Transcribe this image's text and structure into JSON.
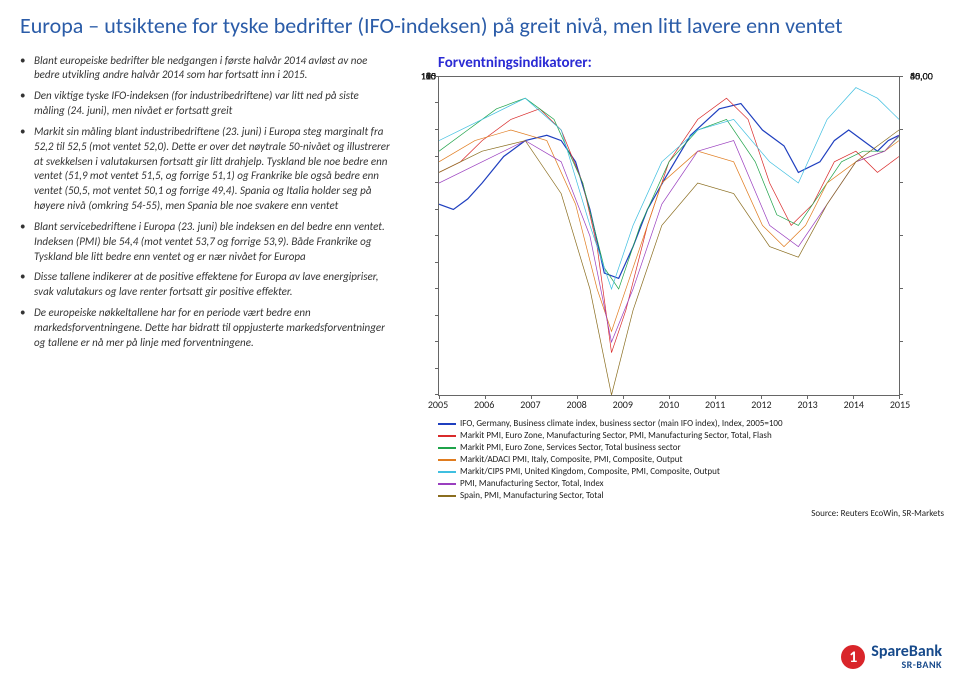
{
  "title": "Europa – utsiktene for tyske bedrifter (IFO-indeksen) på greit nivå, men litt lavere enn ventet",
  "bullets": [
    "Blant europeiske bedrifter ble nedgangen i første halvår 2014 avløst av noe bedre utvikling andre halvår 2014 som har fortsatt inn i 2015.",
    "Den viktige tyske IFO-indeksen (for industribedriftene) var litt ned på siste måling (24. juni), men nivået er fortsatt greit",
    "Markit sin måling blant industribedriftene (23. juni) i Europa steg marginalt fra 52,2 til 52,5 (mot ventet 52,0). Dette er over det nøytrale 50-nivået og illustrerer at svekkelsen i valutakursen fortsatt gir litt drahjelp. Tyskland ble noe bedre enn ventet (51,9 mot ventet 51,5, og forrige 51,1) og Frankrike ble også bedre enn ventet (50,5, mot ventet 50,1 og forrige 49,4). Spania og Italia holder seg på høyere nivå (omkring 54-55), men Spania ble noe svakere enn ventet",
    "Blant servicebedriftene i Europa (23. juni) ble indeksen en del bedre enn ventet. Indeksen (PMI) ble 54,4 (mot ventet 53,7 og forrige 53,9). Både Frankrike og Tyskland ble litt bedre enn ventet og er nær nivået for Europa",
    "Disse tallene indikerer at de positive effektene for Europa av lave energipriser, svak valutakurs og lave renter fortsatt gir positive effekter.",
    "De europeiske nøkkeltallene har for en periode vært bedre enn markedsforventningene. Dette har bidratt til oppjusterte markedsforventninger og tallene er nå mer på linje med forventningene."
  ],
  "chart": {
    "title": "Forventningsindikatorer:",
    "x_years": [
      "2005",
      "2006",
      "2007",
      "2008",
      "2009",
      "2010",
      "2011",
      "2012",
      "2013",
      "2014",
      "2015"
    ],
    "left_axis": {
      "min": 60,
      "max": 120,
      "step": 5
    },
    "right_axis": {
      "min": 30,
      "max": 60,
      "step": 5,
      "decimals": 2
    },
    "background_color": "#ffffff",
    "border_color": "#666666",
    "series": [
      {
        "id": "ifo",
        "label": "IFO, Germany, Business climate index, business sector (main IFO index), Index, 2005=100",
        "color": "#1f3fbf",
        "axis": "left",
        "pts": [
          [
            0,
            96
          ],
          [
            4,
            95
          ],
          [
            8,
            97
          ],
          [
            12,
            100
          ],
          [
            18,
            105
          ],
          [
            24,
            108
          ],
          [
            30,
            109
          ],
          [
            34,
            108
          ],
          [
            38,
            104
          ],
          [
            42,
            95
          ],
          [
            46,
            83
          ],
          [
            50,
            82
          ],
          [
            54,
            88
          ],
          [
            58,
            95
          ],
          [
            63,
            101
          ],
          [
            70,
            109
          ],
          [
            78,
            114
          ],
          [
            84,
            115
          ],
          [
            90,
            110
          ],
          [
            96,
            107
          ],
          [
            100,
            102
          ],
          [
            106,
            104
          ],
          [
            110,
            108
          ],
          [
            114,
            110
          ],
          [
            118,
            108
          ],
          [
            122,
            106
          ],
          [
            125,
            108
          ],
          [
            128,
            109
          ]
        ]
      },
      {
        "id": "ez_mfg",
        "label": "Markit PMI, Euro Zone, Manufacturing Sector, PMI, Manufacturing Sector, Total, Flash",
        "color": "#d92b2b",
        "axis": "right",
        "pts": [
          [
            0,
            51
          ],
          [
            6,
            52
          ],
          [
            12,
            54
          ],
          [
            20,
            56
          ],
          [
            28,
            57
          ],
          [
            34,
            55
          ],
          [
            40,
            50
          ],
          [
            44,
            44
          ],
          [
            48,
            34
          ],
          [
            52,
            38
          ],
          [
            58,
            46
          ],
          [
            64,
            52
          ],
          [
            72,
            56
          ],
          [
            80,
            58
          ],
          [
            86,
            56
          ],
          [
            92,
            50
          ],
          [
            98,
            46
          ],
          [
            104,
            48
          ],
          [
            110,
            52
          ],
          [
            116,
            53
          ],
          [
            122,
            51
          ],
          [
            126,
            52
          ],
          [
            128,
            52.5
          ]
        ]
      },
      {
        "id": "ez_svc",
        "label": "Markit PMI, Euro Zone, Services Sector, Total business sector",
        "color": "#1fa34a",
        "axis": "right",
        "pts": [
          [
            0,
            53
          ],
          [
            8,
            55
          ],
          [
            16,
            57
          ],
          [
            24,
            58
          ],
          [
            32,
            56
          ],
          [
            40,
            50
          ],
          [
            46,
            42
          ],
          [
            50,
            40
          ],
          [
            56,
            46
          ],
          [
            64,
            52
          ],
          [
            72,
            55
          ],
          [
            80,
            56
          ],
          [
            88,
            52
          ],
          [
            94,
            47
          ],
          [
            100,
            46
          ],
          [
            106,
            49
          ],
          [
            112,
            52
          ],
          [
            118,
            53
          ],
          [
            124,
            53
          ],
          [
            128,
            54.4
          ]
        ]
      },
      {
        "id": "it_comp",
        "label": "Markit/ADACI PMI, Italy, Composite, PMI, Composite, Output",
        "color": "#e07c1f",
        "axis": "right",
        "pts": [
          [
            0,
            52
          ],
          [
            10,
            54
          ],
          [
            20,
            55
          ],
          [
            30,
            54
          ],
          [
            38,
            48
          ],
          [
            44,
            40
          ],
          [
            48,
            36
          ],
          [
            54,
            42
          ],
          [
            62,
            50
          ],
          [
            72,
            53
          ],
          [
            82,
            52
          ],
          [
            90,
            46
          ],
          [
            96,
            44
          ],
          [
            102,
            46
          ],
          [
            108,
            50
          ],
          [
            116,
            52
          ],
          [
            124,
            53
          ],
          [
            128,
            54
          ]
        ]
      },
      {
        "id": "uk_comp",
        "label": "Markit/CIPS PMI, United Kingdom, Composite, PMI, Composite, Output",
        "color": "#3fbfe0",
        "axis": "right",
        "pts": [
          [
            0,
            54
          ],
          [
            12,
            56
          ],
          [
            24,
            58
          ],
          [
            34,
            55
          ],
          [
            42,
            46
          ],
          [
            48,
            40
          ],
          [
            54,
            46
          ],
          [
            62,
            52
          ],
          [
            72,
            55
          ],
          [
            82,
            56
          ],
          [
            92,
            52
          ],
          [
            100,
            50
          ],
          [
            108,
            56
          ],
          [
            116,
            59
          ],
          [
            122,
            58
          ],
          [
            128,
            56
          ]
        ]
      },
      {
        "id": "it_mfg",
        "label": "PMI, Manufacturing Sector, Total, Index",
        "color": "#9a3fbf",
        "axis": "right",
        "pts": [
          [
            0,
            50
          ],
          [
            12,
            52
          ],
          [
            24,
            54
          ],
          [
            34,
            52
          ],
          [
            42,
            45
          ],
          [
            48,
            35
          ],
          [
            54,
            40
          ],
          [
            62,
            48
          ],
          [
            72,
            53
          ],
          [
            82,
            54
          ],
          [
            92,
            46
          ],
          [
            100,
            44
          ],
          [
            108,
            48
          ],
          [
            116,
            52
          ],
          [
            124,
            53
          ],
          [
            128,
            54.5
          ]
        ]
      },
      {
        "id": "es_mfg",
        "label": "Spain, PMI, Manufacturing Sector, Total",
        "color": "#8a6d1f",
        "axis": "right",
        "pts": [
          [
            0,
            51
          ],
          [
            12,
            53
          ],
          [
            24,
            54
          ],
          [
            34,
            49
          ],
          [
            42,
            40
          ],
          [
            48,
            30
          ],
          [
            54,
            38
          ],
          [
            62,
            46
          ],
          [
            72,
            50
          ],
          [
            82,
            49
          ],
          [
            92,
            44
          ],
          [
            100,
            43
          ],
          [
            108,
            48
          ],
          [
            116,
            52
          ],
          [
            124,
            54
          ],
          [
            128,
            55
          ]
        ]
      }
    ],
    "legend_colors": {
      "ifo": "#1f3fbf",
      "ez_mfg": "#d92b2b",
      "ez_svc": "#1fa34a",
      "it_comp": "#e07c1f",
      "uk_comp": "#3fbfe0",
      "it_mfg": "#9a3fbf",
      "es_mfg": "#8a6d1f"
    },
    "source": "Source: Reuters EcoWin, SR-Markets"
  },
  "logo": {
    "mark": "1",
    "main": "SpareBank",
    "sub": "SR-BANK"
  }
}
